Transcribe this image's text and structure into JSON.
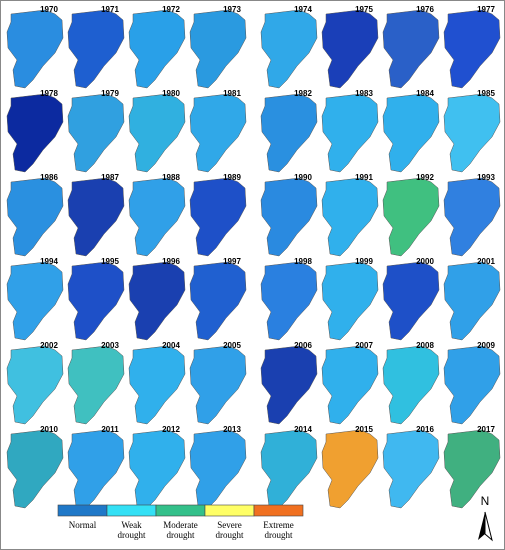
{
  "maps": [
    {
      "year": "1970",
      "color": "#2a8de0"
    },
    {
      "year": "1971",
      "color": "#1e5fd0"
    },
    {
      "year": "1972",
      "color": "#29a0e8"
    },
    {
      "year": "1973",
      "color": "#2a9ae0"
    },
    {
      "year": "1974",
      "color": "#30a8e8"
    },
    {
      "year": "1975",
      "color": "#1a3fb8"
    },
    {
      "year": "1976",
      "color": "#2a60c8"
    },
    {
      "year": "1977",
      "color": "#2050d0"
    },
    {
      "year": "1978",
      "color": "#0c2aa0"
    },
    {
      "year": "1979",
      "color": "#30a0e0"
    },
    {
      "year": "1980",
      "color": "#30b0e0"
    },
    {
      "year": "1981",
      "color": "#30a8e8"
    },
    {
      "year": "1982",
      "color": "#2a90e0"
    },
    {
      "year": "1983",
      "color": "#30b0ec"
    },
    {
      "year": "1984",
      "color": "#30b0ec"
    },
    {
      "year": "1985",
      "color": "#40c0f0"
    },
    {
      "year": "1986",
      "color": "#2a90e0"
    },
    {
      "year": "1987",
      "color": "#1a40b0"
    },
    {
      "year": "1988",
      "color": "#30a0e8"
    },
    {
      "year": "1989",
      "color": "#1e50c8"
    },
    {
      "year": "1990",
      "color": "#2a8ae0"
    },
    {
      "year": "1991",
      "color": "#30b0ec"
    },
    {
      "year": "1992",
      "color": "#40c080"
    },
    {
      "year": "1993",
      "color": "#3080e0"
    },
    {
      "year": "1994",
      "color": "#30a0e8"
    },
    {
      "year": "1995",
      "color": "#1e50c8"
    },
    {
      "year": "1996",
      "color": "#1a40b0"
    },
    {
      "year": "1997",
      "color": "#2060d0"
    },
    {
      "year": "1998",
      "color": "#2a80e0"
    },
    {
      "year": "1999",
      "color": "#30b0ec"
    },
    {
      "year": "2000",
      "color": "#1e50c8"
    },
    {
      "year": "2001",
      "color": "#30a0e8"
    },
    {
      "year": "2002",
      "color": "#40c0e0"
    },
    {
      "year": "2003",
      "color": "#40c0c0"
    },
    {
      "year": "2004",
      "color": "#30b0ec"
    },
    {
      "year": "2005",
      "color": "#30a0e8"
    },
    {
      "year": "2006",
      "color": "#1a40b0"
    },
    {
      "year": "2007",
      "color": "#30b0ec"
    },
    {
      "year": "2008",
      "color": "#30c0e0"
    },
    {
      "year": "2009",
      "color": "#30a0e8"
    },
    {
      "year": "2010",
      "color": "#30a8c0"
    },
    {
      "year": "2011",
      "color": "#30a0e8"
    },
    {
      "year": "2012",
      "color": "#30b0ec"
    },
    {
      "year": "2013",
      "color": "#30a0e8"
    },
    {
      "year": "2014",
      "color": "#30b0d8"
    },
    {
      "year": "2015",
      "color": "#f0a030"
    },
    {
      "year": "2016",
      "color": "#40b8f0"
    },
    {
      "year": "2017",
      "color": "#40b080"
    }
  ],
  "legend": {
    "items": [
      {
        "label": "Normal",
        "color": "#1f78c8"
      },
      {
        "label": "Weak drought",
        "color": "#33e0f5"
      },
      {
        "label": "Moderate drought",
        "color": "#33c08a"
      },
      {
        "label": "Severe drought",
        "color": "#ffff66"
      },
      {
        "label": "Extreme drought",
        "color": "#f07020"
      }
    ]
  },
  "north": "N"
}
